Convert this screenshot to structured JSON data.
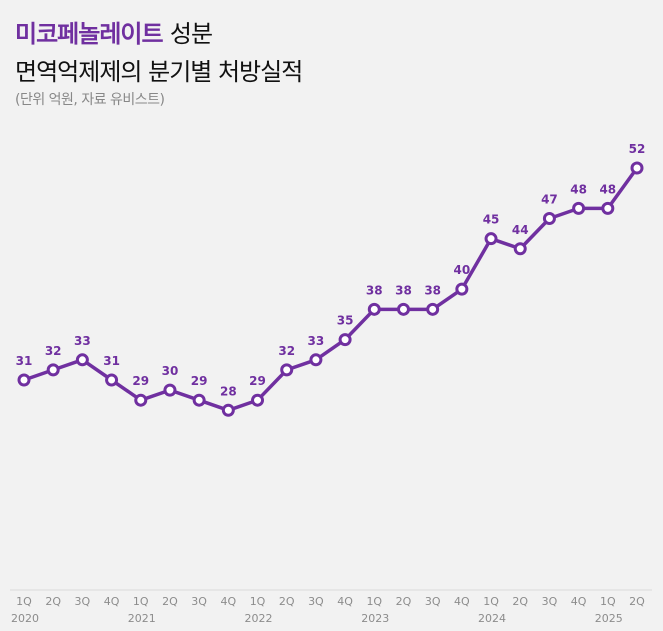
{
  "title": {
    "highlight": "미코페놀레이트",
    "rest": "성분",
    "line2": "면역억제제의 분기별 처방실적",
    "note": "(단위 억원, 자료 유비스트)"
  },
  "colors": {
    "accent": "#7030a0",
    "axis": "#d9d9d9",
    "tick": "#8c8c8c"
  },
  "chart_data": {
    "type": "line",
    "title": "미코페놀레이트 성분 면역억제제의 분기별 처방실적",
    "subtitle": "(단위 억원, 자료 유비스트)",
    "categories": [
      "1Q",
      "2Q",
      "3Q",
      "4Q",
      "1Q",
      "2Q",
      "3Q",
      "4Q",
      "1Q",
      "2Q",
      "3Q",
      "4Q",
      "1Q",
      "2Q",
      "3Q",
      "4Q",
      "1Q",
      "2Q",
      "3Q",
      "4Q",
      "1Q",
      "2Q"
    ],
    "years": [
      {
        "label": "2020",
        "index": 0
      },
      {
        "label": "2021",
        "index": 4
      },
      {
        "label": "2022",
        "index": 8
      },
      {
        "label": "2023",
        "index": 12
      },
      {
        "label": "2024",
        "index": 16
      },
      {
        "label": "2025",
        "index": 20
      }
    ],
    "series": [
      {
        "name": "처방실적",
        "values": [
          31,
          32,
          33,
          31,
          29,
          30,
          29,
          28,
          29,
          32,
          33,
          35,
          38,
          38,
          38,
          40,
          45,
          44,
          47,
          48,
          48,
          52
        ]
      }
    ],
    "ylim": [
      10,
      55
    ],
    "grid": false,
    "xlabel": "",
    "ylabel": ""
  }
}
